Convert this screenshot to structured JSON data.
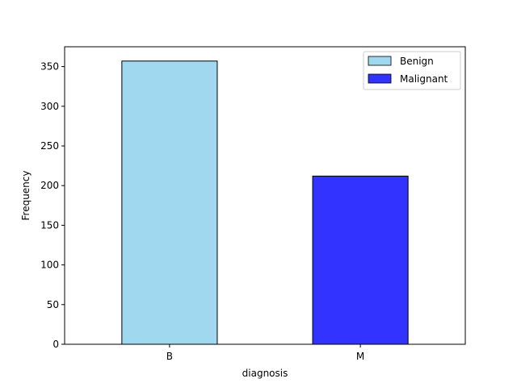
{
  "chart_data": {
    "type": "bar",
    "categories": [
      "B",
      "M"
    ],
    "values": [
      357,
      212
    ],
    "title": "",
    "xlabel": "diagnosis",
    "ylabel": "Frequency",
    "ylim": [
      0,
      375
    ],
    "yticks": [
      0,
      50,
      100,
      150,
      200,
      250,
      300,
      350
    ],
    "grid": false,
    "legend_position": "upper right",
    "series": [
      {
        "name": "Benign",
        "category": "B",
        "value": 357,
        "color": "#87ceeb"
      },
      {
        "name": "Malignant",
        "category": "M",
        "value": 212,
        "color": "#0000ff"
      }
    ]
  }
}
